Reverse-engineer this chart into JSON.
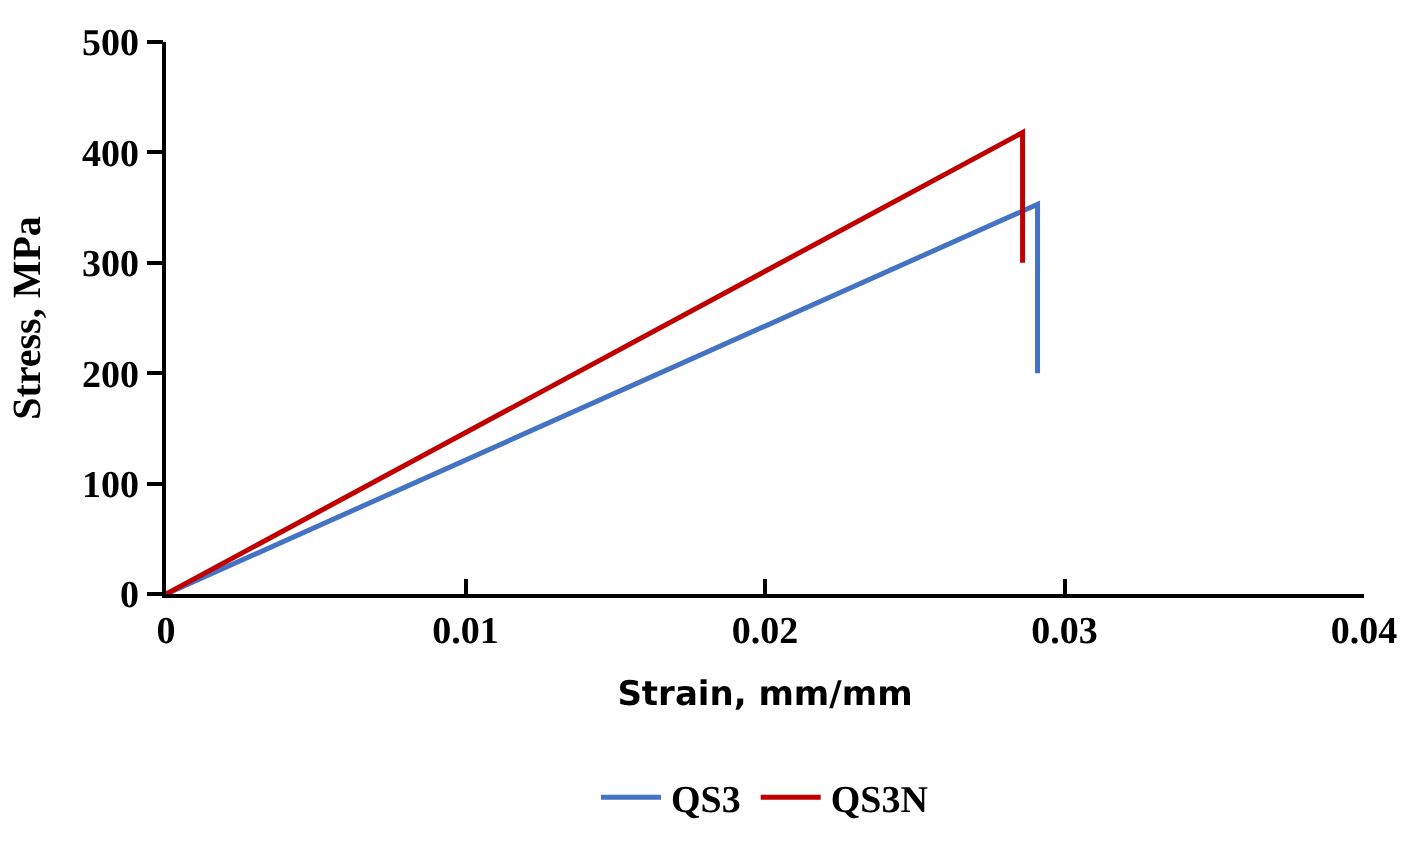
{
  "chart_data": {
    "type": "line",
    "xlabel": "Strain, mm/mm",
    "ylabel": "Stress, MPa",
    "series": [
      {
        "name": "QS3",
        "color": "#4472c4",
        "x": [
          0,
          0.0291,
          0.0291
        ],
        "values": [
          0,
          353,
          200
        ]
      },
      {
        "name": "QS3N",
        "color": "#c00000",
        "x": [
          0,
          0.0286,
          0.0286
        ],
        "values": [
          0,
          418,
          300
        ]
      }
    ],
    "xlim": [
      0,
      0.04
    ],
    "xticks": [
      0,
      0.01,
      0.02,
      0.03,
      0.04
    ],
    "ylim": [
      0,
      500
    ],
    "yticks": [
      0,
      100,
      200,
      300,
      400,
      500
    ],
    "legend": "bottom",
    "marker": "none",
    "line_style": "solid"
  }
}
